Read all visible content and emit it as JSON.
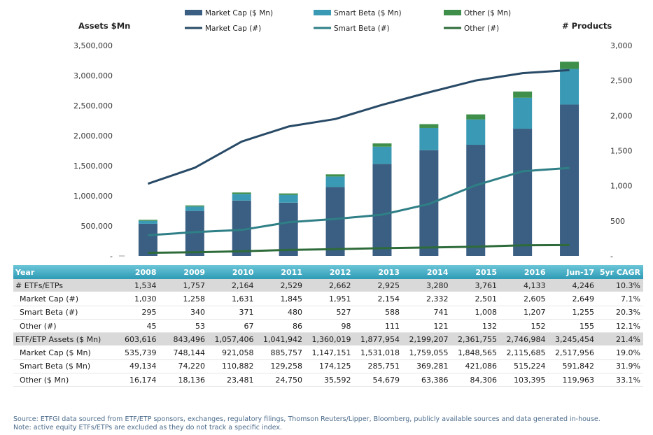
{
  "chart_data": {
    "type": "bar",
    "categories": [
      "2008",
      "2009",
      "2010",
      "2011",
      "2012",
      "2013",
      "2014",
      "2015",
      "2016",
      "Jun-17"
    ],
    "left_axis_title": "Assets $Mn",
    "right_axis_title": "# Products",
    "left_ticks": [
      "-",
      "500,000",
      "1,000,000",
      "1,500,000",
      "2,000,000",
      "2,500,000",
      "3,000,000",
      "3,500,000"
    ],
    "right_ticks": [
      "-",
      "500",
      "1,000",
      "1,500",
      "2,000",
      "2,500",
      "3,000"
    ],
    "ylim_left": [
      0,
      3500000
    ],
    "ylim_right": [
      0,
      3000
    ],
    "stacked_bars": [
      {
        "name": "Market Cap ($ Mn)",
        "color": "#3a5f82",
        "values": [
          535739,
          748144,
          921058,
          885757,
          1147151,
          1531018,
          1759055,
          1848565,
          2115685,
          2517956
        ]
      },
      {
        "name": "Smart Beta ($ Mn)",
        "color": "#3a9ab5",
        "values": [
          49134,
          74220,
          110882,
          129258,
          174125,
          285751,
          369281,
          421086,
          515224,
          591842
        ]
      },
      {
        "name": "Other ($ Mn)",
        "color": "#3f8f4a",
        "values": [
          16174,
          18136,
          23481,
          24750,
          35592,
          54679,
          63386,
          84306,
          103395,
          119963
        ]
      }
    ],
    "lines": [
      {
        "name": "Market Cap (#)",
        "color": "#284a66",
        "values": [
          1030,
          1258,
          1631,
          1845,
          1951,
          2154,
          2332,
          2501,
          2605,
          2649
        ]
      },
      {
        "name": "Smart Beta (#)",
        "color": "#2f7f86",
        "values": [
          295,
          340,
          371,
          480,
          527,
          588,
          741,
          1008,
          1207,
          1255
        ]
      },
      {
        "name": "Other (#)",
        "color": "#2e6b3a",
        "values": [
          45,
          53,
          67,
          86,
          98,
          111,
          121,
          132,
          152,
          155
        ]
      }
    ]
  },
  "table": {
    "header": [
      "Year",
      "2008",
      "2009",
      "2010",
      "2011",
      "2012",
      "2013",
      "2014",
      "2015",
      "2016",
      "Jun-17",
      "5yr CAGR"
    ],
    "rows": [
      {
        "kind": "total",
        "cells": [
          "# ETFs/ETPs",
          "1,534",
          "1,757",
          "2,164",
          "2,529",
          "2,662",
          "2,925",
          "3,280",
          "3,761",
          "4,133",
          "4,246",
          "10.3%"
        ]
      },
      {
        "kind": "sub",
        "cells": [
          "Market Cap (#)",
          "1,030",
          "1,258",
          "1,631",
          "1,845",
          "1,951",
          "2,154",
          "2,332",
          "2,501",
          "2,605",
          "2,649",
          "7.1%"
        ]
      },
      {
        "kind": "sub",
        "cells": [
          "Smart Beta (#)",
          "295",
          "340",
          "371",
          "480",
          "527",
          "588",
          "741",
          "1,008",
          "1,207",
          "1,255",
          "20.3%"
        ]
      },
      {
        "kind": "sub",
        "cells": [
          "Other (#)",
          "45",
          "53",
          "67",
          "86",
          "98",
          "111",
          "121",
          "132",
          "152",
          "155",
          "12.1%"
        ]
      },
      {
        "kind": "total",
        "cells": [
          "ETF/ETP Assets ($ Mn)",
          "603,616",
          "843,496",
          "1,057,406",
          "1,041,942",
          "1,360,019",
          "1,877,954",
          "2,199,207",
          "2,361,755",
          "2,746,984",
          "3,245,454",
          "21.4%"
        ]
      },
      {
        "kind": "sub",
        "cells": [
          "Market Cap ($ Mn)",
          "535,739",
          "748,144",
          "921,058",
          "885,757",
          "1,147,151",
          "1,531,018",
          "1,759,055",
          "1,848,565",
          "2,115,685",
          "2,517,956",
          "19.0%"
        ]
      },
      {
        "kind": "sub",
        "cells": [
          "Smart Beta ($ Mn)",
          "49,134",
          "74,220",
          "110,882",
          "129,258",
          "174,125",
          "285,751",
          "369,281",
          "421,086",
          "515,224",
          "591,842",
          "31.9%"
        ]
      },
      {
        "kind": "sub",
        "cells": [
          "Other ($ Mn)",
          "16,174",
          "18,136",
          "23,481",
          "24,750",
          "35,592",
          "54,679",
          "63,386",
          "84,306",
          "103,395",
          "119,963",
          "33.1%"
        ]
      }
    ]
  },
  "source": {
    "line1": "Source: ETFGI data sourced from ETF/ETP sponsors, exchanges, regulatory filings, Thomson Reuters/Lipper, Bloomberg, publicly available sources and data generated in-house.",
    "line2": "Note: active equity ETFs/ETPs are excluded as they do not track a specific index."
  }
}
